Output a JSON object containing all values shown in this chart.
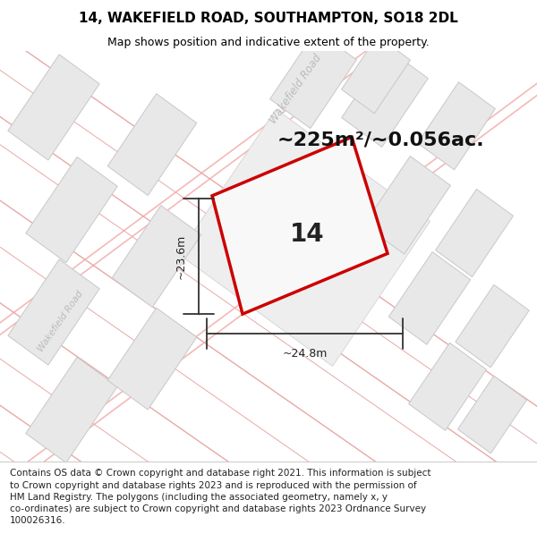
{
  "title": "14, WAKEFIELD ROAD, SOUTHAMPTON, SO18 2DL",
  "subtitle": "Map shows position and indicative extent of the property.",
  "footer_text": "Contains OS data © Crown copyright and database right 2021. This information is subject\nto Crown copyright and database rights 2023 and is reproduced with the permission of\nHM Land Registry. The polygons (including the associated geometry, namely x, y\nco-ordinates) are subject to Crown copyright and database rights 2023 Ordnance Survey\n100026316.",
  "area_text": "~225m²/~0.056ac.",
  "property_number": "14",
  "dim_vertical": "~23.6m",
  "dim_horizontal": "~24.8m",
  "road_label_right": "Wakefield Road",
  "road_label_left": "Wakefield Road",
  "map_bg": "#ffffff",
  "building_fill": "#e8e8e8",
  "building_edge": "#c8c8c8",
  "road_line_color": "#f5b8b8",
  "road_line_color2": "#e8a8a8",
  "property_edge_color": "#cc0000",
  "property_fill": "#f8f8f8",
  "dim_line_color": "#333333",
  "title_fontsize": 11,
  "subtitle_fontsize": 9,
  "footer_fontsize": 7.5,
  "area_fontsize": 16,
  "number_fontsize": 20,
  "dim_fontsize": 9,
  "road_label_fontsize": 8.5
}
